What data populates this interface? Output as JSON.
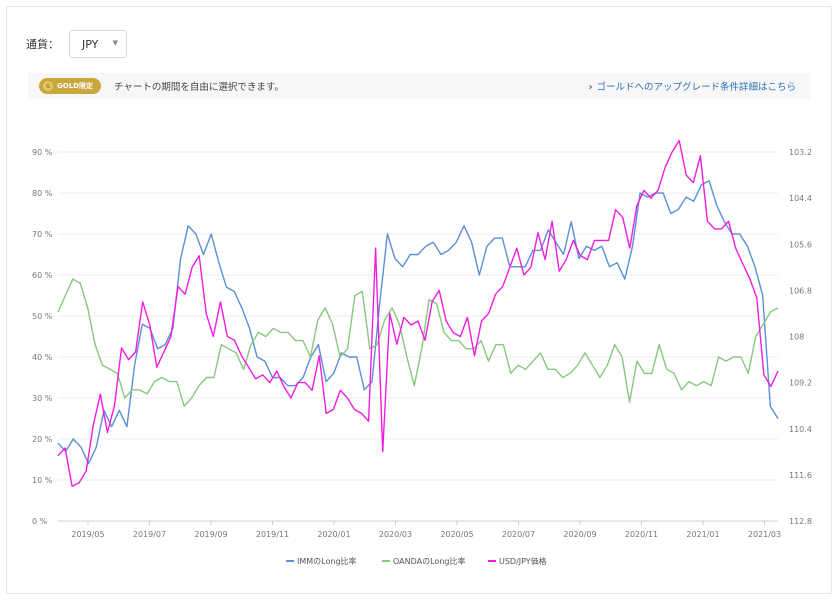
{
  "currency": {
    "label": "通貨：",
    "selected": "JPY"
  },
  "gold_notice": {
    "badge": "GOLD限定",
    "text": "チャートの期間を自由に選択できます。",
    "link_chevron": "›",
    "link": "ゴールドへのアップグレード条件詳細はこちら"
  },
  "colors": {
    "imm": "#5b8fd6",
    "oanda": "#86c97e",
    "usdjpy": "#f21de0",
    "grid": "#ececec",
    "axis_text": "#777777"
  },
  "chart_data": {
    "type": "line",
    "x_ticks": [
      "2019/05",
      "2019/07",
      "2019/09",
      "2019/11",
      "2020/01",
      "2020/03",
      "2020/05",
      "2020/07",
      "2020/09",
      "2020/11",
      "2021/01",
      "2021/03"
    ],
    "y_left": {
      "ticks": [
        "0 %",
        "10 %",
        "20 %",
        "30 %",
        "40 %",
        "50 %",
        "60 %",
        "70 %",
        "80 %",
        "90 %"
      ],
      "range": [
        0,
        90
      ]
    },
    "y_right": {
      "ticks": [
        "103.2",
        "104.4",
        "105.6",
        "106.8",
        "108",
        "109.2",
        "110.4",
        "111.6",
        "112.8"
      ],
      "range": [
        103.2,
        112.8
      ],
      "inverted": true
    },
    "series": [
      {
        "name": "IMMのLong比率",
        "axis": "left",
        "values": [
          19,
          17,
          20,
          18,
          14,
          18,
          27,
          23,
          27,
          23,
          38,
          48,
          47,
          42,
          43,
          47,
          64,
          72,
          70,
          65,
          70,
          63,
          57,
          56,
          52,
          47,
          40,
          39,
          35,
          35,
          33,
          33,
          35,
          40,
          43,
          34,
          36,
          41,
          40,
          40,
          32,
          34,
          53,
          70,
          64,
          62,
          65,
          65,
          67,
          68,
          65,
          66,
          68,
          72,
          68,
          60,
          67,
          69,
          69,
          62,
          62,
          62,
          66,
          66,
          71,
          68,
          65,
          73,
          64,
          67,
          66,
          67,
          62,
          63,
          59,
          67,
          80,
          79,
          80,
          80,
          75,
          76,
          79,
          78,
          82,
          83,
          77,
          73,
          70,
          70,
          67,
          62,
          55,
          28,
          25
        ]
      },
      {
        "name": "OANDAのLong比率",
        "axis": "left",
        "values": [
          51,
          55,
          59,
          58,
          52,
          43,
          38,
          37,
          36,
          30,
          32,
          32,
          31,
          34,
          35,
          34,
          34,
          28,
          30,
          33,
          35,
          35,
          43,
          42,
          41,
          37,
          43,
          46,
          45,
          47,
          46,
          46,
          44,
          44,
          40,
          49,
          52,
          48,
          40,
          42,
          55,
          56,
          42,
          43,
          49,
          52,
          48,
          40,
          33,
          42,
          54,
          53,
          46,
          44,
          44,
          42,
          42,
          44,
          39,
          43,
          43,
          36,
          38,
          37,
          39,
          41,
          37,
          37,
          35,
          36,
          38,
          41,
          38,
          35,
          38,
          43,
          40,
          29,
          39,
          36,
          36,
          43,
          37,
          36,
          32,
          34,
          33,
          34,
          33,
          40,
          39,
          40,
          40,
          36,
          45,
          48,
          51,
          52
        ]
      },
      {
        "name": "USD/JPY価格",
        "axis": "right",
        "values": [
          111.1,
          110.9,
          111.9,
          111.8,
          111.5,
          110.3,
          109.5,
          110.5,
          109.8,
          108.3,
          108.6,
          108.4,
          107.1,
          107.7,
          108.8,
          108.4,
          108.0,
          106.7,
          106.9,
          106.2,
          105.9,
          107.4,
          108.0,
          107.1,
          108.0,
          108.1,
          108.5,
          108.8,
          109.1,
          109.0,
          109.2,
          108.9,
          109.3,
          109.6,
          109.2,
          109.2,
          109.4,
          108.5,
          110.0,
          109.9,
          109.4,
          109.6,
          109.9,
          110.0,
          110.2,
          105.7,
          111.0,
          107.4,
          108.2,
          107.5,
          107.7,
          107.6,
          108.1,
          107.1,
          106.8,
          107.6,
          107.9,
          108.0,
          107.5,
          108.5,
          107.6,
          107.4,
          106.9,
          106.7,
          106.2,
          105.7,
          106.4,
          106.2,
          105.3,
          106.0,
          105.0,
          106.3,
          106.0,
          105.5,
          105.9,
          106.0,
          105.5,
          105.5,
          105.5,
          104.7,
          104.9,
          105.7,
          104.6,
          104.2,
          104.4,
          104.2,
          103.6,
          103.2,
          102.9,
          103.8,
          104.0,
          103.3,
          105.0,
          105.2,
          105.2,
          105.0,
          105.7,
          106.1,
          106.5,
          107.0,
          109.0,
          109.3,
          108.9
        ]
      }
    ],
    "legend": [
      "IMMのLong比率",
      "OANDAのLong比率",
      "USD/JPY価格"
    ],
    "legend_position": "bottom",
    "grid": true
  }
}
